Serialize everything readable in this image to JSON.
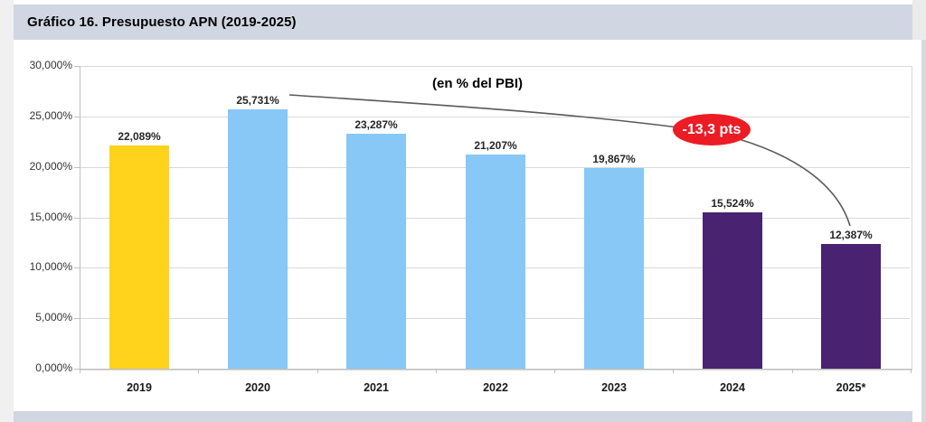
{
  "page": {
    "header_title": "Gráfico 16. Presupuesto APN (2019-2025)"
  },
  "colors": {
    "header_band": "#D1D6E3",
    "footer_band": "#D1D6E3",
    "annotation_red": "#EC1C24",
    "annotation_text_color": "#FFFFFF",
    "callout_line": "#595959",
    "gridline": "#D9D9D9",
    "axis": "#BFBFBF"
  },
  "chart_data": {
    "type": "bar",
    "title": "Gráfico 16. Presupuesto APN (2019-2025)",
    "subtitle": "(en % del PBI)",
    "categories": [
      "2019",
      "2020",
      "2021",
      "2022",
      "2023",
      "2024",
      "2025*"
    ],
    "values": [
      22.089,
      25.731,
      23.287,
      21.207,
      19.867,
      15.524,
      12.387
    ],
    "value_labels": [
      "22,089%",
      "25,731%",
      "23,287%",
      "21,207%",
      "19,867%",
      "15,524%",
      "12,387%"
    ],
    "bar_colors": [
      "#FFD21C",
      "#87C8F7",
      "#87C8F7",
      "#87C8F7",
      "#87C8F7",
      "#4A2272",
      "#4A2272"
    ],
    "xlabel": "",
    "ylabel": "",
    "ylim": [
      0,
      30
    ],
    "y_ticks": [
      0,
      5,
      10,
      15,
      20,
      25,
      30
    ],
    "y_tick_labels": [
      "0,000%",
      "5,000%",
      "10,000%",
      "15,000%",
      "20,000%",
      "25,000%",
      "30,000%"
    ],
    "grid": true,
    "legend": false,
    "annotation": {
      "text": "-13,3 pts"
    }
  }
}
